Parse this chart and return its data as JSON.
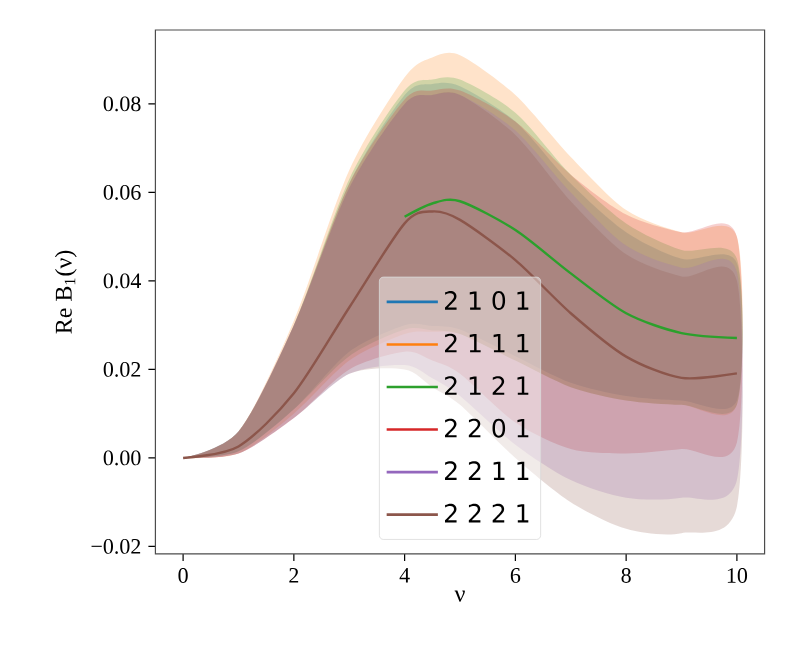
{
  "chart_data": {
    "type": "line",
    "xlabel": "ν",
    "ylabel": "Re B$_{1}$(ν)",
    "x": [
      0,
      1,
      2,
      3,
      4,
      4.5,
      5,
      6,
      7,
      8,
      9,
      10
    ],
    "series": [
      {
        "name": "2 1 0 1",
        "color": "#1f77b4",
        "values": [
          null,
          null,
          null,
          null,
          null,
          null,
          null,
          null,
          null,
          null,
          null,
          null
        ],
        "upper": [
          0,
          0.006,
          0.03,
          0.062,
          0.082,
          0.0845,
          0.084,
          0.076,
          0.062,
          0.051,
          0.045,
          0.044
        ],
        "lower": [
          0,
          0.0015,
          0.011,
          0.024,
          0.03,
          0.0298,
          0.029,
          0.023,
          0.017,
          0.014,
          0.013,
          0.013
        ]
      },
      {
        "name": "2 1 1 1",
        "color": "#ff7f0e",
        "values": [
          null,
          null,
          null,
          null,
          null,
          null,
          null,
          null,
          null,
          null,
          null,
          null
        ],
        "upper": [
          0,
          0.006,
          0.031,
          0.065,
          0.086,
          0.0905,
          0.091,
          0.082,
          0.068,
          0.056,
          0.051,
          0.05
        ],
        "lower": [
          0,
          0.001,
          0.01,
          0.022,
          0.028,
          0.0285,
          0.028,
          0.022,
          0.016,
          0.013,
          0.012,
          0.012
        ]
      },
      {
        "name": "2 1 2 1",
        "color": "#2ca02c",
        "values": [
          null,
          null,
          null,
          null,
          0.0545,
          0.0575,
          0.058,
          0.0515,
          0.0417,
          0.0327,
          0.0282,
          0.0271
        ],
        "upper": [
          0,
          0.006,
          0.03,
          0.063,
          0.083,
          0.0855,
          0.0855,
          0.078,
          0.064,
          0.053,
          0.047,
          0.045
        ],
        "lower": [
          0,
          0.0015,
          0.011,
          0.023,
          0.029,
          0.0288,
          0.028,
          0.022,
          0.016,
          0.013,
          0.012,
          0.012
        ]
      },
      {
        "name": "2 2 0 1",
        "color": "#d62728",
        "values": [
          null,
          null,
          null,
          null,
          null,
          null,
          null,
          null,
          null,
          null,
          null,
          null
        ],
        "upper": [
          0,
          0.006,
          0.03,
          0.062,
          0.081,
          0.083,
          0.083,
          0.076,
          0.064,
          0.055,
          0.051,
          0.05
        ],
        "lower": [
          0,
          0.001,
          0.009,
          0.02,
          0.024,
          0.022,
          0.019,
          0.008,
          0.002,
          0.001,
          0.002,
          0.0035
        ]
      },
      {
        "name": "2 2 1 1",
        "color": "#9467bd",
        "values": [
          null,
          null,
          null,
          null,
          null,
          null,
          null,
          null,
          null,
          null,
          null,
          null
        ],
        "upper": [
          0,
          0.006,
          0.03,
          0.061,
          0.08,
          0.082,
          0.082,
          0.074,
          0.06,
          0.048,
          0.043,
          0.042
        ],
        "lower": [
          0,
          0.001,
          0.009,
          0.019,
          0.021,
          0.018,
          0.014,
          0.003,
          -0.005,
          -0.009,
          -0.009,
          -0.005
        ]
      },
      {
        "name": "2 2 2 1",
        "color": "#8c564b",
        "values": [
          0,
          0.0026,
          0.0146,
          0.034,
          0.053,
          0.0557,
          0.0538,
          0.0447,
          0.0327,
          0.0229,
          0.0181,
          0.0191
        ],
        "upper": [
          0,
          0.006,
          0.03,
          0.061,
          0.08,
          0.082,
          0.082,
          0.073,
          0.058,
          0.046,
          0.041,
          0.04
        ],
        "lower": [
          0,
          0.001,
          0.009,
          0.019,
          0.02,
          0.016,
          0.012,
          0.0,
          -0.01,
          -0.016,
          -0.017,
          -0.011
        ]
      }
    ],
    "xlim": [
      -0.5,
      10.5
    ],
    "ylim": [
      -0.0217,
      0.0967
    ],
    "xticks": [
      0,
      2,
      4,
      6,
      8,
      10
    ],
    "yticks": [
      {
        "value": -0.02,
        "label": "−0.02"
      },
      {
        "value": 0,
        "label": "0.00"
      },
      {
        "value": 0.02,
        "label": "0.02"
      },
      {
        "value": 0.04,
        "label": "0.04"
      },
      {
        "value": 0.06,
        "label": "0.06"
      },
      {
        "value": 0.08,
        "label": "0.08"
      }
    ],
    "legend": "bottom",
    "grid": false,
    "marker": "none",
    "line_style": "solid"
  }
}
